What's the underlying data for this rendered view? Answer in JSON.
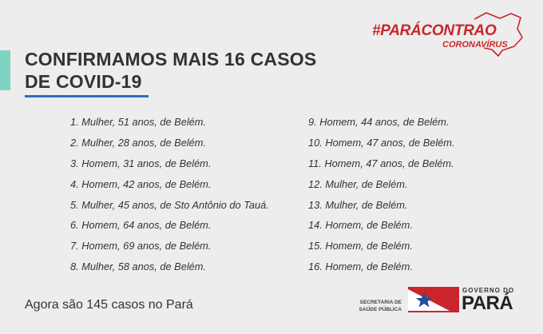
{
  "campaign": {
    "line1": "#PARÁCONTRAO",
    "line2": "CORONAVÍRUS"
  },
  "headline": {
    "line1": "CONFIRMAMOS MAIS 16 CASOS",
    "line2": "DE COVID-19"
  },
  "cases_left": [
    "1. Mulher, 51 anos, de Belém.",
    "2. Mulher, 28 anos, de Belém.",
    "3. Homem, 31 anos, de Belém.",
    "4. Homem, 42 anos, de Belém.",
    "5. Mulher, 45 anos, de Sto Antônio do Tauá.",
    "6. Homem, 64 anos, de Belém.",
    "7. Homem, 69 anos, de Belém.",
    "8. Mulher, 58 anos, de Belém."
  ],
  "cases_right": [
    "9. Homem, 44 anos, de Belém.",
    "10. Homem, 47 anos, de Belém.",
    "11. Homem, 47 anos, de Belém.",
    "12. Mulher, de Belém.",
    "13. Mulher, de Belém.",
    "14. Homem, de Belém.",
    "15. Homem, de Belém.",
    "16. Homem, de Belém."
  ],
  "footer": {
    "total_text": "Agora são 145 casos no Pará"
  },
  "logos": {
    "secretaria_line1": "SECRETARIA DE",
    "secretaria_line2": "SAÚDE PÚBLICA",
    "governo_small": "GOVERNO DO",
    "governo_big": "PARÁ"
  },
  "colors": {
    "brand_red": "#c9262c",
    "accent_teal": "#7fd3c1",
    "underline_blue": "#2a6fc0",
    "flag_blue": "#1f4e9c"
  },
  "icons": {
    "state_outline": "para-state-outline-icon",
    "flag": "para-flag-icon"
  }
}
